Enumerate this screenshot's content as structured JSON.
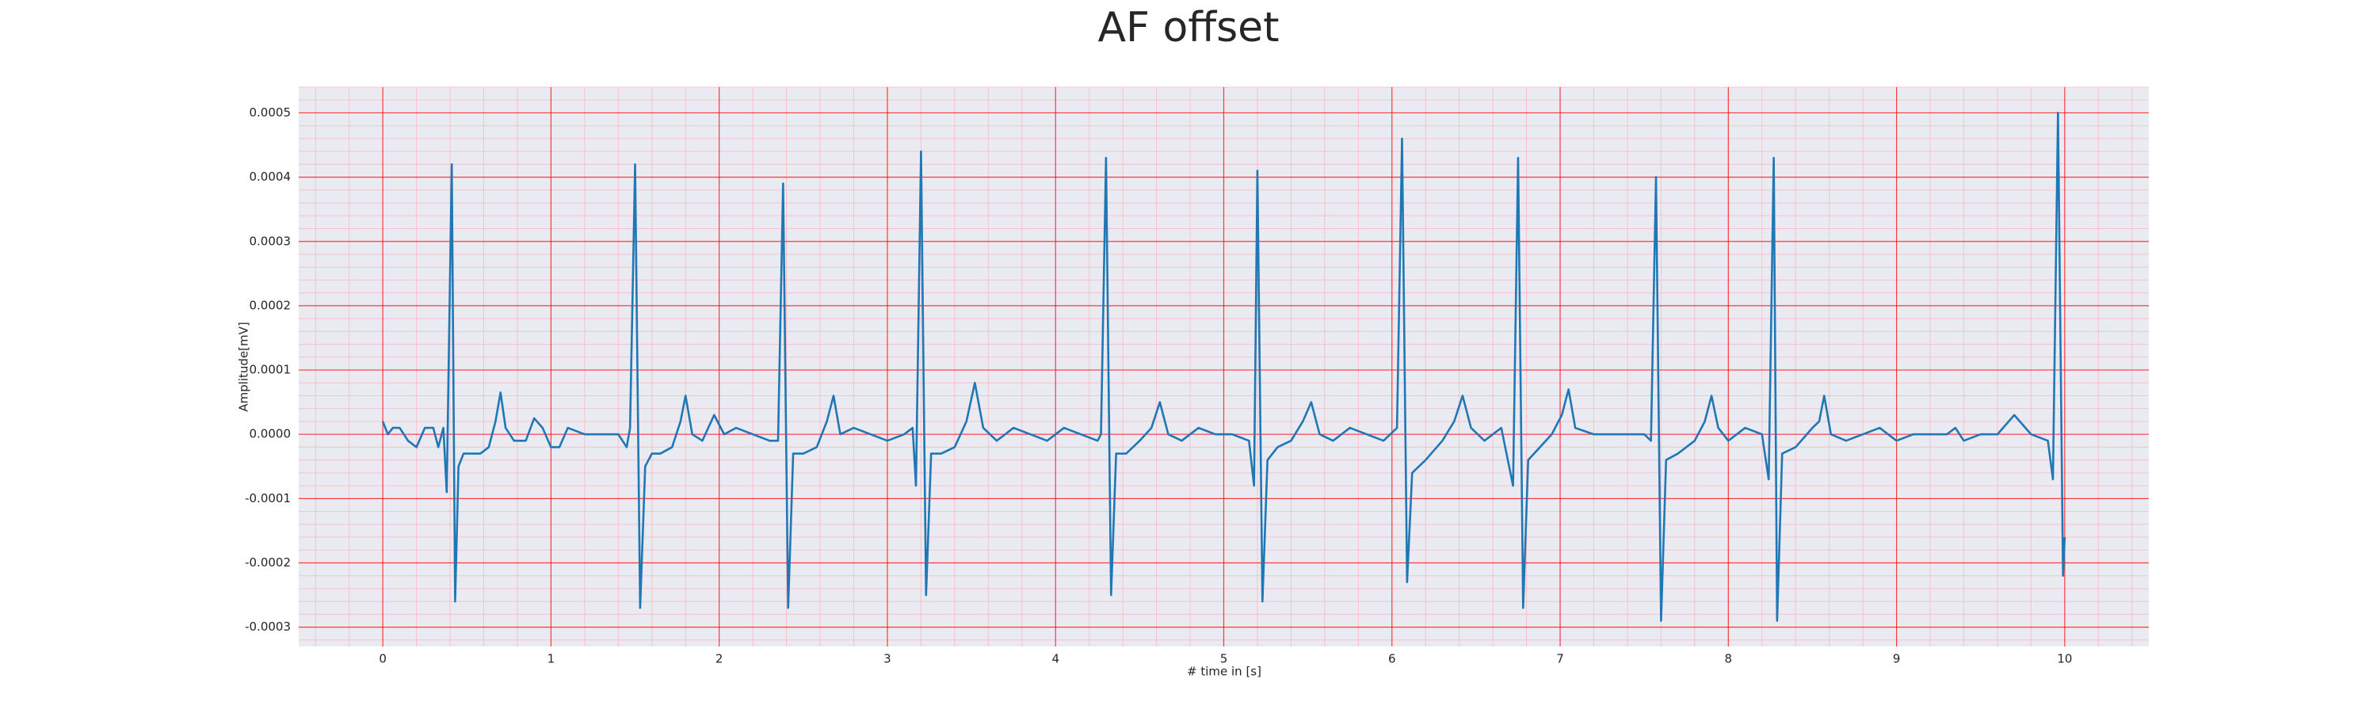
{
  "chart_data": {
    "type": "line",
    "title": "AF offset",
    "xlabel": "# time in [s]",
    "ylabel": "Amplitude[mV]",
    "x": [
      0,
      0.03,
      0.06,
      0.1,
      0.15,
      0.2,
      0.25,
      0.3,
      0.33,
      0.36,
      0.38,
      0.41,
      0.43,
      0.45,
      0.48,
      0.52,
      0.58,
      0.63,
      0.67,
      0.7,
      0.73,
      0.78,
      0.85,
      0.9,
      0.95,
      1.0,
      1.05,
      1.1,
      1.2,
      1.3,
      1.4,
      1.45,
      1.47,
      1.5,
      1.53,
      1.56,
      1.6,
      1.65,
      1.72,
      1.77,
      1.8,
      1.84,
      1.9,
      1.97,
      2.03,
      2.1,
      2.2,
      2.3,
      2.35,
      2.38,
      2.41,
      2.44,
      2.5,
      2.58,
      2.64,
      2.68,
      2.72,
      2.8,
      2.9,
      3.0,
      3.1,
      3.15,
      3.17,
      3.2,
      3.23,
      3.26,
      3.32,
      3.4,
      3.47,
      3.52,
      3.57,
      3.65,
      3.75,
      3.85,
      3.95,
      4.05,
      4.15,
      4.25,
      4.27,
      4.3,
      4.33,
      4.36,
      4.42,
      4.5,
      4.57,
      4.62,
      4.67,
      4.75,
      4.85,
      4.95,
      5.05,
      5.15,
      5.18,
      5.2,
      5.23,
      5.26,
      5.32,
      5.4,
      5.47,
      5.52,
      5.57,
      5.65,
      5.75,
      5.85,
      5.95,
      6.03,
      6.06,
      6.09,
      6.12,
      6.2,
      6.3,
      6.37,
      6.42,
      6.47,
      6.55,
      6.65,
      6.72,
      6.75,
      6.78,
      6.81,
      6.88,
      6.95,
      7.01,
      7.05,
      7.09,
      7.2,
      7.3,
      7.4,
      7.5,
      7.54,
      7.57,
      7.6,
      7.63,
      7.7,
      7.8,
      7.86,
      7.9,
      7.94,
      8.0,
      8.1,
      8.2,
      8.24,
      8.27,
      8.29,
      8.32,
      8.4,
      8.5,
      8.54,
      8.57,
      8.61,
      8.7,
      8.8,
      8.9,
      9.0,
      9.1,
      9.2,
      9.3,
      9.35,
      9.4,
      9.5,
      9.6,
      9.7,
      9.8,
      9.9,
      9.93,
      9.96,
      9.99,
      10.0
    ],
    "series": [
      {
        "color": "#1f77b4",
        "values": [
          2e-05,
          0,
          1e-05,
          1e-05,
          -1e-05,
          -2e-05,
          1e-05,
          1e-05,
          -2e-05,
          1e-05,
          -9e-05,
          0.00042,
          -0.00026,
          -5e-05,
          -3e-05,
          -3e-05,
          -3e-05,
          -2e-05,
          2e-05,
          6.5e-05,
          1e-05,
          -1e-05,
          -1e-05,
          2.5e-05,
          1e-05,
          -2e-05,
          -2e-05,
          1e-05,
          0,
          0,
          0,
          -2e-05,
          1e-05,
          0.00042,
          -0.00027,
          -5e-05,
          -3e-05,
          -3e-05,
          -2e-05,
          2e-05,
          6e-05,
          0,
          -1e-05,
          3e-05,
          0,
          1e-05,
          0,
          -1e-05,
          -1e-05,
          0.00039,
          -0.00027,
          -3e-05,
          -3e-05,
          -2e-05,
          2e-05,
          6e-05,
          0,
          1e-05,
          0,
          -1e-05,
          0,
          1e-05,
          -8e-05,
          0.00044,
          -0.00025,
          -3e-05,
          -3e-05,
          -2e-05,
          2e-05,
          8e-05,
          1e-05,
          -1e-05,
          1e-05,
          0,
          -1e-05,
          1e-05,
          0,
          -1e-05,
          0,
          0.00043,
          -0.00025,
          -3e-05,
          -3e-05,
          -1e-05,
          1e-05,
          5e-05,
          0,
          -1e-05,
          1e-05,
          0,
          0,
          -1e-05,
          -8e-05,
          0.00041,
          -0.00026,
          -4e-05,
          -2e-05,
          -1e-05,
          2e-05,
          5e-05,
          0,
          -1e-05,
          1e-05,
          0,
          -1e-05,
          1e-05,
          0.00046,
          -0.00023,
          -6e-05,
          -4e-05,
          -1e-05,
          2e-05,
          6e-05,
          1e-05,
          -1e-05,
          1e-05,
          -8e-05,
          0.00043,
          -0.00027,
          -4e-05,
          -2e-05,
          0,
          3e-05,
          7e-05,
          1e-05,
          0,
          0,
          0,
          0,
          -1e-05,
          0.0004,
          -0.00029,
          -4e-05,
          -3e-05,
          -1e-05,
          2e-05,
          6e-05,
          1e-05,
          -1e-05,
          1e-05,
          0,
          -7e-05,
          0.00043,
          -0.00029,
          -3e-05,
          -2e-05,
          1e-05,
          2e-05,
          6e-05,
          0,
          -1e-05,
          0,
          1e-05,
          -1e-05,
          0,
          0,
          0,
          1e-05,
          -1e-05,
          0,
          0,
          3e-05,
          0,
          -1e-05,
          -7e-05,
          0.0005,
          -0.00022,
          -0.00016
        ]
      }
    ],
    "xlim": [
      -0.5,
      10.5
    ],
    "xticks": [
      0,
      1,
      2,
      3,
      4,
      5,
      6,
      7,
      8,
      9,
      10
    ],
    "ylim": [
      -0.00033,
      0.00054
    ],
    "yticks": [
      -0.0003,
      -0.0002,
      -0.0001,
      {
        "value": 0,
        "label": "0.0000"
      },
      0.0001,
      0.0002,
      0.0003,
      0.0004,
      0.0005
    ],
    "grid": true,
    "minor_grid": true,
    "grid_color": "#ff0000",
    "minor_grid_color": "#ffb0b8",
    "background": "#eaeaf2"
  }
}
